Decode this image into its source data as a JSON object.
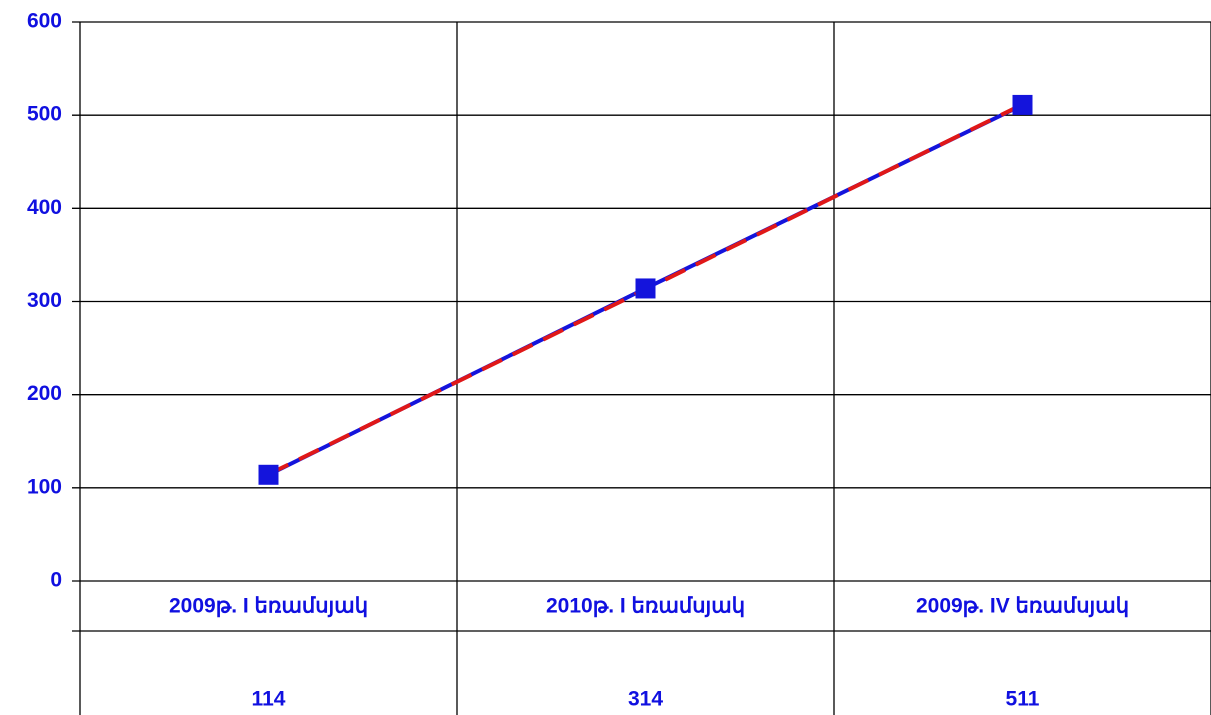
{
  "chart_data": {
    "type": "line",
    "categories": [
      "2009թ. I եռամսյակ",
      "2010թ. I եռամսյակ",
      "2009թ. IV եռամսյակ"
    ],
    "values": [
      114,
      314,
      511
    ],
    "color": "#1414dc",
    "trendline_color": "#e01818",
    "trendline": true,
    "ylim": [
      0,
      600
    ],
    "yticks": [
      0,
      100,
      200,
      300,
      400,
      500,
      600
    ],
    "grid": true,
    "data_table": true
  }
}
